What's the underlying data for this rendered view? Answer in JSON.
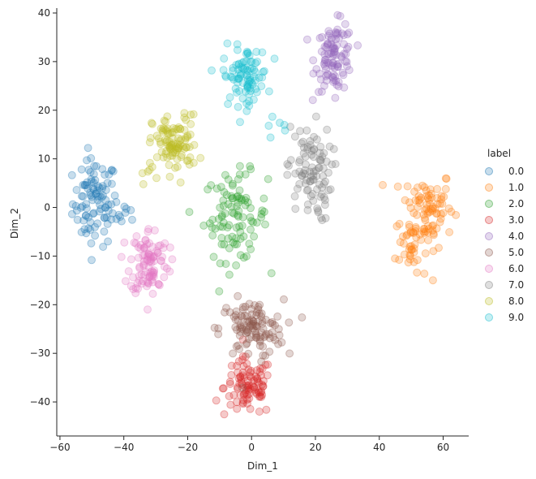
{
  "chart_data": {
    "type": "scatter",
    "title": "",
    "xlabel": "Dim_1",
    "ylabel": "Dim_2",
    "xlim": [
      -61,
      68
    ],
    "ylim": [
      -47,
      41
    ],
    "xticks": [
      -60,
      -40,
      -20,
      0,
      20,
      40,
      60
    ],
    "yticks": [
      -40,
      -30,
      -20,
      -10,
      0,
      10,
      20,
      30,
      40
    ],
    "grid": false,
    "legend": {
      "title": "label",
      "placement": "right"
    },
    "marker_alpha": 0.25,
    "series": [
      {
        "name": "0.0",
        "color": "#1f77b4",
        "clusters": [
          {
            "center": [
              -49,
              1
            ],
            "spread": [
              3.5,
              4.5
            ],
            "n": 95
          },
          {
            "center": [
              -40,
              -1.5
            ],
            "spread": [
              2.0,
              1.2
            ],
            "n": 10
          }
        ]
      },
      {
        "name": "1.0",
        "color": "#ff7f0e",
        "clusters": [
          {
            "center": [
              55,
              0
            ],
            "spread": [
              4.0,
              4.0
            ],
            "n": 85
          },
          {
            "center": [
              50,
              -8
            ],
            "spread": [
              2.5,
              3.5
            ],
            "n": 35
          }
        ]
      },
      {
        "name": "2.0",
        "color": "#2ca02c",
        "clusters": [
          {
            "center": [
              -5,
              -2
            ],
            "spread": [
              5.0,
              4.5
            ],
            "n": 100
          }
        ]
      },
      {
        "name": "3.0",
        "color": "#d62728",
        "clusters": [
          {
            "center": [
              -1,
              -37
            ],
            "spread": [
              3.8,
              3.0
            ],
            "n": 95
          }
        ]
      },
      {
        "name": "4.0",
        "color": "#9467bd",
        "clusters": [
          {
            "center": [
              26,
              31
            ],
            "spread": [
              3.0,
              3.5
            ],
            "n": 100
          }
        ]
      },
      {
        "name": "5.0",
        "color": "#8c564b",
        "clusters": [
          {
            "center": [
              0,
              -25
            ],
            "spread": [
              5.0,
              3.0
            ],
            "n": 110
          }
        ]
      },
      {
        "name": "6.0",
        "color": "#e377c2",
        "clusters": [
          {
            "center": [
              -32,
              -11
            ],
            "spread": [
              3.0,
              3.5
            ],
            "n": 100
          }
        ]
      },
      {
        "name": "7.0",
        "color": "#7f7f7f",
        "clusters": [
          {
            "center": [
              18,
              7
            ],
            "spread": [
              3.5,
              5.0
            ],
            "n": 95
          }
        ]
      },
      {
        "name": "8.0",
        "color": "#bcbd22",
        "clusters": [
          {
            "center": [
              -24,
              13
            ],
            "spread": [
              3.5,
              3.0
            ],
            "n": 100
          },
          {
            "center": [
              -33,
              7
            ],
            "spread": [
              1.5,
              1.0
            ],
            "n": 6
          }
        ]
      },
      {
        "name": "9.0",
        "color": "#17becf",
        "clusters": [
          {
            "center": [
              -2,
              27
            ],
            "spread": [
              3.5,
              3.0
            ],
            "n": 90
          },
          {
            "center": [
              7,
              17
            ],
            "spread": [
              2.0,
              1.0
            ],
            "n": 6
          }
        ]
      }
    ]
  }
}
